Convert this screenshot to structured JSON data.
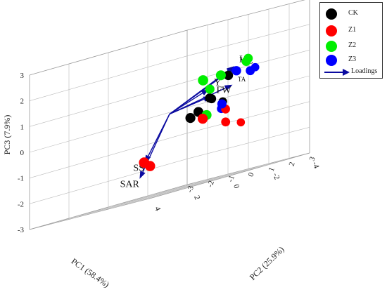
{
  "chart_data": {
    "type": "scatter",
    "title": "",
    "axes": {
      "pc1": {
        "label": "PC1 (58.4%)",
        "range": [
          -4,
          4
        ],
        "ticks": [
          "-4",
          "-2",
          "0",
          "2",
          "4"
        ]
      },
      "pc2": {
        "label": "PC2 (25.9%)",
        "range": [
          -3,
          3
        ],
        "ticks": [
          "-3",
          "-2",
          "-1",
          "0",
          "1",
          "2",
          "3"
        ]
      },
      "pc3": {
        "label": "PC3 (7.9%)",
        "range": [
          -3,
          3
        ],
        "ticks": [
          "-3",
          "-2",
          "-1",
          "0",
          "1",
          "2",
          "3"
        ]
      }
    },
    "series": [
      {
        "name": "CK",
        "color": "#000000",
        "points": [
          [
            -2.6,
            0.1,
            -0.1
          ],
          [
            -1.2,
            0.9,
            0.15
          ],
          [
            -1.0,
            1.0,
            0.2
          ],
          [
            -0.6,
            2.3,
            0.9
          ],
          [
            0.4,
            1.8,
            -0.2
          ],
          [
            0.6,
            1.6,
            -0.35
          ]
        ]
      },
      {
        "name": "Z1",
        "color": "#ff0000",
        "points": [
          [
            -3.1,
            0.5,
            -1.1
          ],
          [
            -1.6,
            1.2,
            -0.4
          ],
          [
            -1.5,
            1.3,
            -0.9
          ],
          [
            0.7,
            2.3,
            -0.5
          ],
          [
            1.6,
            0.3,
            -1.6
          ],
          [
            1.2,
            0.2,
            -1.8
          ]
        ]
      },
      {
        "name": "Z2",
        "color": "#00ee00",
        "points": [
          [
            -0.8,
            1.2,
            0.55
          ],
          [
            -1.3,
            2.6,
            1.35
          ],
          [
            -1.3,
            2.5,
            1.25
          ],
          [
            0.4,
            2.9,
            1.0
          ],
          [
            1.2,
            2.8,
            1.0
          ],
          [
            0.4,
            2.2,
            -0.4
          ]
        ]
      },
      {
        "name": "Z3",
        "color": "#0000ff",
        "points": [
          [
            -3.0,
            1.3,
            0.9
          ],
          [
            -1.9,
            0.7,
            -0.35
          ],
          [
            -1.0,
            1.6,
            -0.15
          ],
          [
            -1.3,
            2.7,
            0.85
          ],
          [
            -0.7,
            2.6,
            1.0
          ]
        ]
      }
    ],
    "loadings_name": "Loadings",
    "loadings_color": "#0a0aa0",
    "loadings": [
      {
        "label": "L",
        "vector": [
          -0.6,
          2.6,
          1.2
        ]
      },
      {
        "label": "VC",
        "vector": [
          -0.3,
          2.9,
          1.15
        ]
      },
      {
        "label": "TA",
        "vector": [
          -0.4,
          2.7,
          0.5
        ]
      },
      {
        "label": "Y",
        "vector": [
          1.0,
          2.9,
          0.6
        ]
      },
      {
        "label": "FW",
        "vector": [
          1.0,
          3.0,
          0.3
        ]
      },
      {
        "label": "SS",
        "vector": [
          2.4,
          1.1,
          -1.6
        ]
      },
      {
        "label": "SAR",
        "vector": [
          0.9,
          -0.6,
          -2.2
        ]
      }
    ],
    "grid": true,
    "legend_position": "top-right"
  }
}
